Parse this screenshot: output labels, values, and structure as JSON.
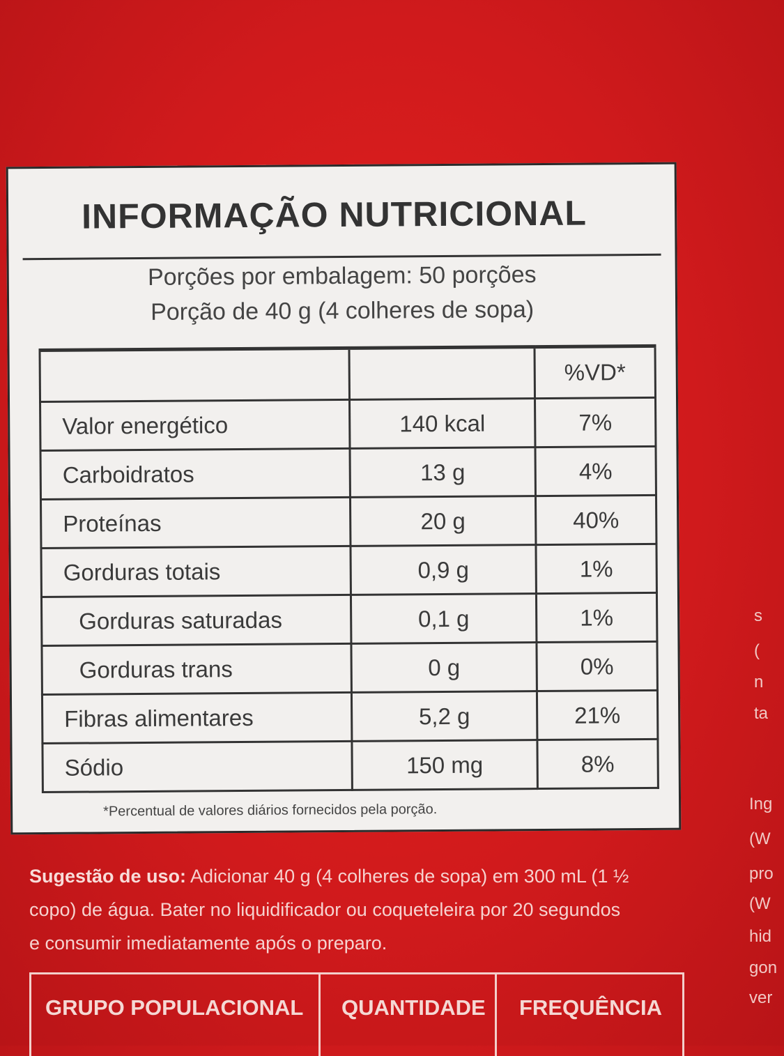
{
  "label": {
    "title": "INFORMAÇÃO NUTRICIONAL",
    "servings": [
      "Porções por embalagem: 50 porções",
      "Porção de 40 g (4 colheres de sopa)"
    ],
    "table": {
      "header": [
        "",
        "",
        "%VD*"
      ],
      "rows": [
        [
          "Valor energético",
          "140 kcal",
          "7%"
        ],
        [
          "Carboidratos",
          "13 g",
          "4%"
        ],
        [
          "Proteínas",
          "20 g",
          "40%"
        ],
        [
          "Gorduras totais",
          "0,9 g",
          "1%"
        ],
        [
          "Gorduras saturadas",
          "0,1 g",
          "1%"
        ],
        [
          "Gorduras trans",
          "0 g",
          "0%"
        ],
        [
          "Fibras alimentares",
          "5,2 g",
          "21%"
        ],
        [
          "Sódio",
          "150 mg",
          "8%"
        ]
      ]
    },
    "footnote": "*Percentual de valores diários fornecidos pela porção."
  },
  "usage": {
    "label": "Sugestão de uso:",
    "lines": [
      "Adicionar 40 g (4 colheres de sopa) em 300 mL (1 ½",
      "copo) de água. Bater no liquidificador ou coqueteleira por 20 segundos",
      "e consumir imediatamente após o preparo."
    ]
  },
  "population_table": {
    "header": [
      "GRUPO POPULACIONAL",
      "QUANTIDADE",
      "FREQUÊNCIA"
    ]
  },
  "side_text": [
    "s",
    "(",
    "n",
    "ta",
    "Ing",
    "(W",
    "pro",
    "(W",
    "hid",
    "gon",
    "ver"
  ]
}
